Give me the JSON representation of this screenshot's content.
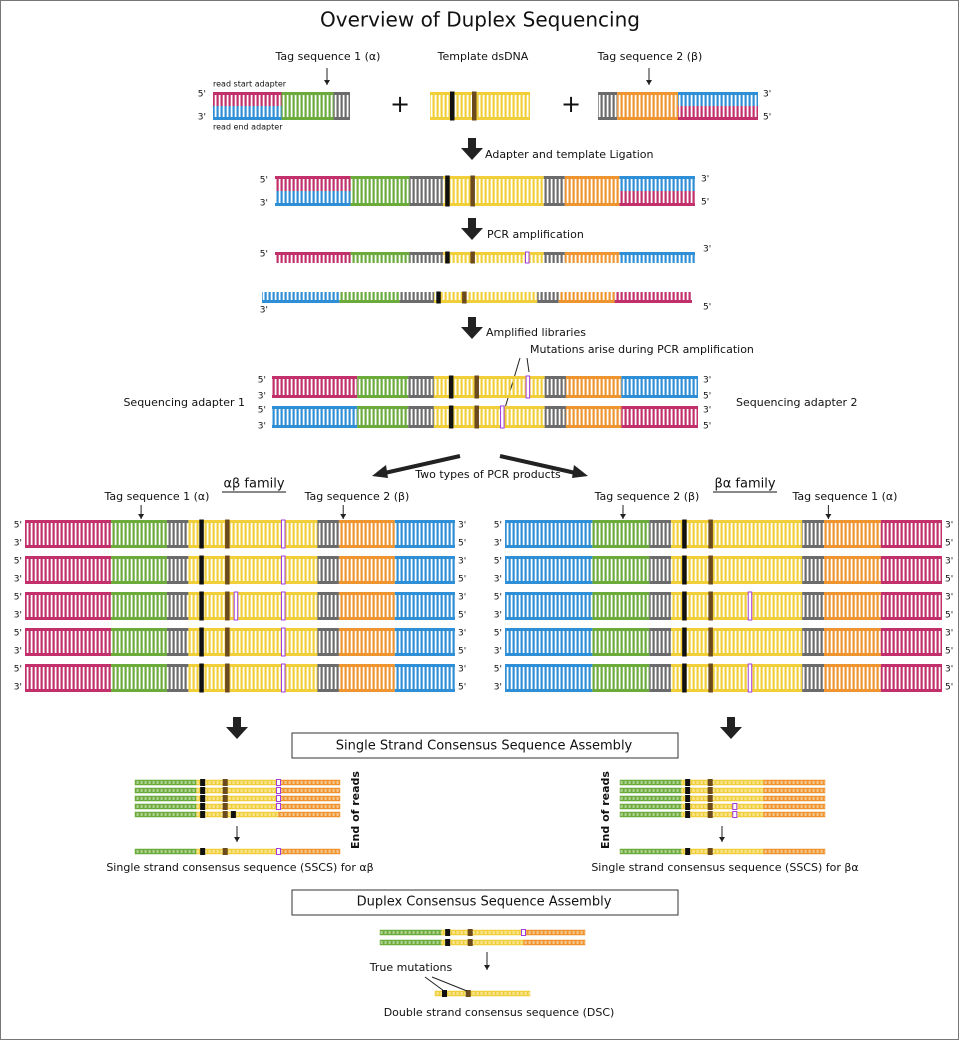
{
  "title": "Overview of Duplex Sequencing",
  "inputs": {
    "tag1": "Tag sequence 1 (α)",
    "template": "Template dsDNA",
    "tag2": "Tag sequence 2 (β)",
    "read_start": "read start adapter",
    "read_end": "read end adapter",
    "plus": "+"
  },
  "ends": {
    "five": "5'",
    "three": "3'"
  },
  "steps": [
    "Adapter and template Ligation",
    "PCR amplification",
    "Amplified libraries"
  ],
  "mutations_note": "Mutations arise during PCR amplification",
  "sequencing_adapters": [
    "Sequencing adapter 1",
    "Sequencing adapter 2"
  ],
  "products": "Two types of PCR products",
  "families": [
    {
      "name": "αβ family",
      "tag_left": "Tag sequence 1 (α)",
      "tag_right": "Tag sequence 2 (β)"
    },
    {
      "name": "βα family",
      "tag_left": "Tag sequence 2 (β)",
      "tag_right": "Tag sequence 1 (α)"
    }
  ],
  "sscs": {
    "heading": "Single Strand Consensus Sequence Assembly",
    "end_of_reads": "End of reads",
    "captions": [
      "Single strand consensus sequence (SSCS) for αβ",
      "Single strand consensus sequence (SSCS) for βα"
    ]
  },
  "dcs": {
    "heading": "Duplex Consensus Sequence Assembly",
    "true_mutations": "True mutations",
    "caption": "Double strand consensus sequence (DSC)"
  }
}
